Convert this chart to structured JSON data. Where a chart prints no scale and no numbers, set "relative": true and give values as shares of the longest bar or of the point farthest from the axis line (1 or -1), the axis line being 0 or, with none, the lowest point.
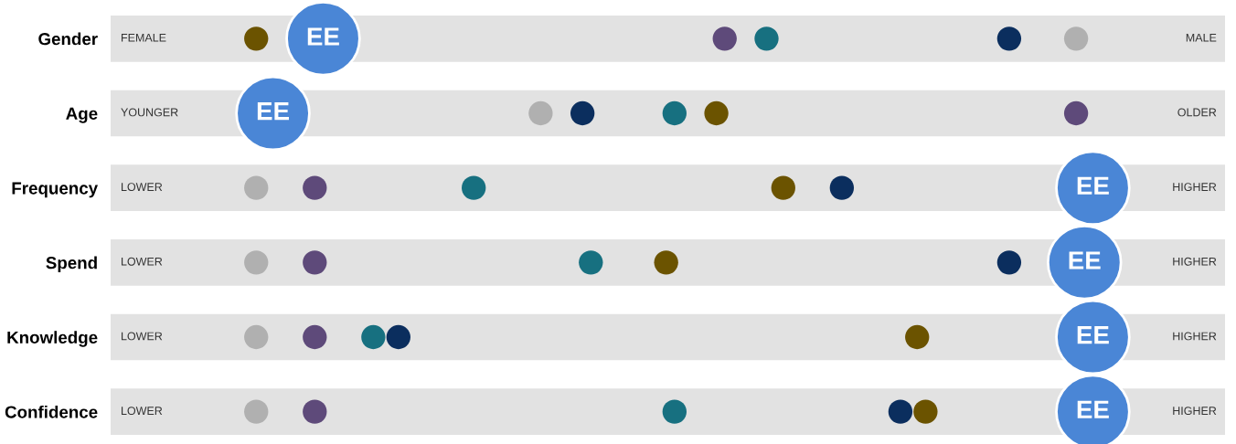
{
  "chart_data": {
    "type": "scatter",
    "orientation": "horizontal",
    "relative": true,
    "tick_labels": "y",
    "legend": false,
    "grid": false,
    "marker": "circle",
    "categories": [
      "Gender",
      "Age",
      "Frequency",
      "Spend",
      "Knowledge",
      "Confidence"
    ],
    "annotations": [
      "FEMALE",
      "MALE",
      "YOUNGER",
      "OLDER",
      "LOWER",
      "HIGHER",
      "LOWER",
      "HIGHER",
      "LOWER",
      "HIGHER",
      "LOWER",
      "HIGHER"
    ],
    "series": [
      {
        "color": "#6b5300",
        "values": [
          0,
          0.55,
          0.63,
          0.49,
          0.79,
          0.8
        ]
      },
      {
        "color": "#5e4a7a",
        "values": [
          0.56,
          0.98,
          0.07,
          0.07,
          0.07,
          0.07
        ]
      },
      {
        "color": "#177080",
        "values": [
          0.61,
          0.5,
          0.26,
          0.4,
          0.14,
          0.5
        ]
      },
      {
        "color": "#0b2e5e",
        "values": [
          0.9,
          0.39,
          0.7,
          0.9,
          0.17,
          0.77
        ]
      },
      {
        "color": "#b0b0b0",
        "values": [
          0.98,
          0.34,
          0,
          0,
          0,
          0
        ]
      },
      {
        "name": "EE",
        "color": "#4a86d6",
        "values": [
          0.08,
          0.02,
          1.0,
          0.99,
          1.0,
          1.0
        ]
      }
    ]
  }
}
